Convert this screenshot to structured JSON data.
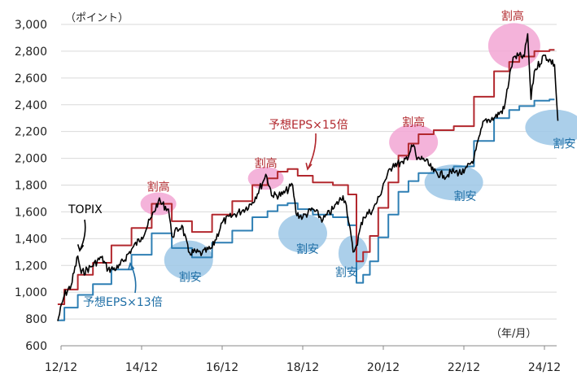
{
  "chart_data": {
    "type": "line",
    "y_unit": "（ポイント）",
    "x_unit": "（年/月）",
    "ylim": [
      600,
      3000
    ],
    "y_ticks": [
      600,
      800,
      1000,
      1200,
      1400,
      1600,
      1800,
      2000,
      2200,
      2400,
      2600,
      2800,
      3000
    ],
    "y_tick_labels": [
      "600",
      "800",
      "1,000",
      "1,200",
      "1,400",
      "1,600",
      "1,800",
      "2,000",
      "2,200",
      "2,400",
      "2,600",
      "2,800",
      "3,000"
    ],
    "x_ticks": [
      "2012-12",
      "2014-12",
      "2016-12",
      "2018-12",
      "2020-12",
      "2022-12",
      "2024-12"
    ],
    "x_tick_labels": [
      "12/12",
      "14/12",
      "16/12",
      "18/12",
      "20/12",
      "22/12",
      "24/12"
    ],
    "grid": "horizontal",
    "colors": {
      "topix": "#000000",
      "eps15": "#b2282e",
      "eps13": "#2e7fb4",
      "pink": "#f2a6d4",
      "blue": "#9cc7e6"
    },
    "series": [
      {
        "name": "TOPIX",
        "x": [
          "2012-11",
          "2013-01",
          "2013-03",
          "2013-05",
          "2013-06",
          "2013-09",
          "2013-12",
          "2014-02",
          "2014-05",
          "2014-09",
          "2014-12",
          "2015-03",
          "2015-05",
          "2015-08",
          "2015-09",
          "2015-12",
          "2016-02",
          "2016-06",
          "2016-09",
          "2016-12",
          "2017-03",
          "2017-06",
          "2017-09",
          "2017-12",
          "2018-01",
          "2018-03",
          "2018-06",
          "2018-09",
          "2018-10",
          "2018-12",
          "2019-03",
          "2019-06",
          "2019-09",
          "2019-12",
          "2020-01",
          "2020-03",
          "2020-04",
          "2020-06",
          "2020-09",
          "2020-11",
          "2020-12",
          "2021-03",
          "2021-06",
          "2021-09",
          "2021-10",
          "2021-12",
          "2022-03",
          "2022-06",
          "2022-09",
          "2022-12",
          "2023-03",
          "2023-06",
          "2023-09",
          "2023-12",
          "2024-02",
          "2024-03",
          "2024-06",
          "2024-07",
          "2024-08",
          "2024-09",
          "2024-12",
          "2025-03",
          "2025-04"
        ],
        "values": [
          785,
          980,
          1050,
          1270,
          1140,
          1190,
          1260,
          1170,
          1180,
          1320,
          1410,
          1560,
          1680,
          1620,
          1420,
          1500,
          1300,
          1290,
          1330,
          1520,
          1570,
          1610,
          1670,
          1815,
          1880,
          1720,
          1730,
          1800,
          1590,
          1560,
          1620,
          1540,
          1620,
          1720,
          1650,
          1300,
          1350,
          1560,
          1620,
          1720,
          1810,
          1960,
          1960,
          2100,
          1990,
          2000,
          1900,
          1870,
          1900,
          1890,
          2000,
          2280,
          2300,
          2370,
          2670,
          2760,
          2760,
          2930,
          2440,
          2650,
          2770,
          2700,
          2280
        ]
      },
      {
        "name": "予想EPS×15倍",
        "x": [
          "2012-11",
          "2013-03",
          "2013-07",
          "2013-12",
          "2014-06",
          "2014-12",
          "2015-06",
          "2015-12",
          "2016-06",
          "2016-12",
          "2017-06",
          "2017-12",
          "2018-03",
          "2018-06",
          "2018-09",
          "2018-12",
          "2019-06",
          "2019-12",
          "2020-03",
          "2020-05",
          "2020-07",
          "2020-09",
          "2020-12",
          "2021-03",
          "2021-06",
          "2021-09",
          "2021-12",
          "2022-06",
          "2022-12",
          "2023-06",
          "2023-12",
          "2024-03",
          "2024-06",
          "2024-12",
          "2025-03"
        ],
        "values": [
          910,
          1020,
          1130,
          1220,
          1350,
          1480,
          1660,
          1530,
          1450,
          1580,
          1680,
          1800,
          1850,
          1900,
          1920,
          1870,
          1820,
          1800,
          1730,
          1230,
          1300,
          1420,
          1630,
          1820,
          2020,
          2110,
          2180,
          2210,
          2240,
          2460,
          2650,
          2720,
          2760,
          2800,
          2810
        ]
      },
      {
        "name": "予想EPS×13倍",
        "x": [
          "2012-11",
          "2013-03",
          "2013-07",
          "2013-12",
          "2014-06",
          "2014-12",
          "2015-06",
          "2015-12",
          "2016-06",
          "2016-12",
          "2017-06",
          "2017-12",
          "2018-03",
          "2018-06",
          "2018-09",
          "2018-12",
          "2019-06",
          "2019-12",
          "2020-03",
          "2020-05",
          "2020-07",
          "2020-09",
          "2020-12",
          "2021-03",
          "2021-06",
          "2021-09",
          "2021-12",
          "2022-06",
          "2022-12",
          "2023-06",
          "2023-12",
          "2024-03",
          "2024-06",
          "2024-12",
          "2025-03"
        ],
        "values": [
          790,
          885,
          980,
          1060,
          1170,
          1280,
          1440,
          1330,
          1260,
          1370,
          1460,
          1560,
          1605,
          1650,
          1665,
          1620,
          1580,
          1560,
          1500,
          1070,
          1130,
          1230,
          1410,
          1580,
          1750,
          1830,
          1890,
          1915,
          1940,
          2130,
          2300,
          2360,
          2390,
          2430,
          2440
        ]
      }
    ],
    "annotations": [
      {
        "id": "topix-label",
        "text": "TOPIX",
        "kind": "label"
      },
      {
        "id": "eps15-label",
        "text": "予想EPS×15倍",
        "kind": "label"
      },
      {
        "id": "eps13-label",
        "text": "予想EPS×13倍",
        "kind": "label"
      },
      {
        "id": "high-2015",
        "text": "割高",
        "kind": "overvalued",
        "x": "2015-05",
        "y": 1660
      },
      {
        "id": "high-2018",
        "text": "割高",
        "kind": "overvalued",
        "x": "2018-01",
        "y": 1850
      },
      {
        "id": "high-2021",
        "text": "割高",
        "kind": "overvalued",
        "x": "2021-09",
        "y": 2120
      },
      {
        "id": "high-2024",
        "text": "割高",
        "kind": "overvalued",
        "x": "2024-03",
        "y": 2840
      },
      {
        "id": "cheap-2016",
        "text": "割安",
        "kind": "undervalued",
        "x": "2016-02",
        "y": 1240
      },
      {
        "id": "cheap-2019",
        "text": "割安",
        "kind": "undervalued",
        "x": "2018-12",
        "y": 1440
      },
      {
        "id": "cheap-2020",
        "text": "割安",
        "kind": "undervalued",
        "x": "2020-03",
        "y": 1290
      },
      {
        "id": "cheap-2022",
        "text": "割安",
        "kind": "undervalued",
        "x": "2022-09",
        "y": 1820
      },
      {
        "id": "cheap-2025",
        "text": "割安",
        "kind": "undervalued",
        "x": "2025-03",
        "y": 2230
      }
    ]
  }
}
